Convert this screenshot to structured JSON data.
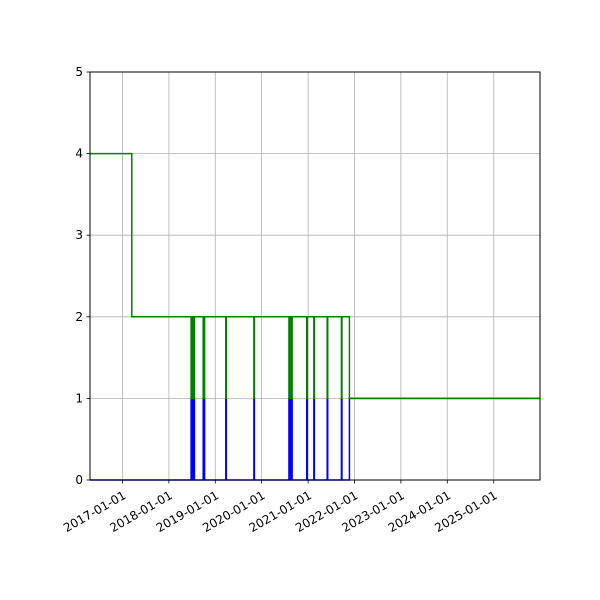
{
  "chart_data": {
    "type": "line",
    "title": "",
    "xlabel": "",
    "ylabel": "",
    "x_axis": "date",
    "xlim": [
      "2016-04-20",
      "2025-12-31"
    ],
    "ylim": [
      0,
      5
    ],
    "grid": true,
    "legend": "none",
    "y_ticks": [
      0,
      1,
      2,
      3,
      4,
      5
    ],
    "x_ticks": [
      "2017-01-01",
      "2018-01-01",
      "2019-01-01",
      "2020-01-01",
      "2021-01-01",
      "2022-01-01",
      "2023-01-01",
      "2024-01-01",
      "2025-01-01"
    ],
    "series": [
      {
        "color": "#0000ff",
        "step": "post",
        "points": [
          [
            "2016-04-20",
            0
          ],
          [
            "2018-06-25",
            1
          ],
          [
            "2018-06-29",
            0
          ],
          [
            "2018-07-03",
            1
          ],
          [
            "2018-07-07",
            0
          ],
          [
            "2018-07-10",
            1
          ],
          [
            "2018-07-14",
            0
          ],
          [
            "2018-07-17",
            1
          ],
          [
            "2018-07-21",
            0
          ],
          [
            "2018-09-28",
            1
          ],
          [
            "2018-10-02",
            0
          ],
          [
            "2018-10-05",
            1
          ],
          [
            "2018-10-09",
            0
          ],
          [
            "2019-03-25",
            1
          ],
          [
            "2019-03-29",
            0
          ],
          [
            "2019-11-01",
            1
          ],
          [
            "2019-11-05",
            0
          ],
          [
            "2020-08-03",
            1
          ],
          [
            "2020-08-07",
            0
          ],
          [
            "2020-08-10",
            1
          ],
          [
            "2020-08-14",
            0
          ],
          [
            "2020-08-24",
            1
          ],
          [
            "2020-08-28",
            0
          ],
          [
            "2020-12-21",
            1
          ],
          [
            "2020-12-25",
            0
          ],
          [
            "2021-02-15",
            1
          ],
          [
            "2021-02-19",
            0
          ],
          [
            "2021-05-31",
            1
          ],
          [
            "2021-06-04",
            0
          ],
          [
            "2021-09-20",
            1
          ],
          [
            "2021-09-24",
            0
          ],
          [
            "2021-11-22",
            1
          ],
          [
            "2025-12-31",
            1
          ]
        ]
      },
      {
        "color": "#008000",
        "step": "post",
        "points": [
          [
            "2016-04-20",
            4
          ],
          [
            "2017-03-15",
            2
          ],
          [
            "2018-06-25",
            1
          ],
          [
            "2018-06-29",
            2
          ],
          [
            "2018-07-03",
            1
          ],
          [
            "2018-07-07",
            2
          ],
          [
            "2018-07-10",
            1
          ],
          [
            "2018-07-14",
            2
          ],
          [
            "2018-07-17",
            1
          ],
          [
            "2018-07-21",
            2
          ],
          [
            "2018-09-28",
            1
          ],
          [
            "2018-10-02",
            2
          ],
          [
            "2018-10-05",
            1
          ],
          [
            "2018-10-09",
            2
          ],
          [
            "2019-03-25",
            1
          ],
          [
            "2019-03-29",
            2
          ],
          [
            "2019-11-01",
            1
          ],
          [
            "2019-11-05",
            2
          ],
          [
            "2020-08-03",
            1
          ],
          [
            "2020-08-07",
            2
          ],
          [
            "2020-08-10",
            1
          ],
          [
            "2020-08-14",
            2
          ],
          [
            "2020-08-24",
            1
          ],
          [
            "2020-08-28",
            2
          ],
          [
            "2020-12-21",
            1
          ],
          [
            "2020-12-25",
            2
          ],
          [
            "2021-02-15",
            1
          ],
          [
            "2021-02-19",
            2
          ],
          [
            "2021-05-31",
            1
          ],
          [
            "2021-06-04",
            2
          ],
          [
            "2021-09-20",
            1
          ],
          [
            "2021-09-24",
            2
          ],
          [
            "2021-11-22",
            1
          ],
          [
            "2025-12-31",
            1
          ]
        ]
      }
    ]
  }
}
